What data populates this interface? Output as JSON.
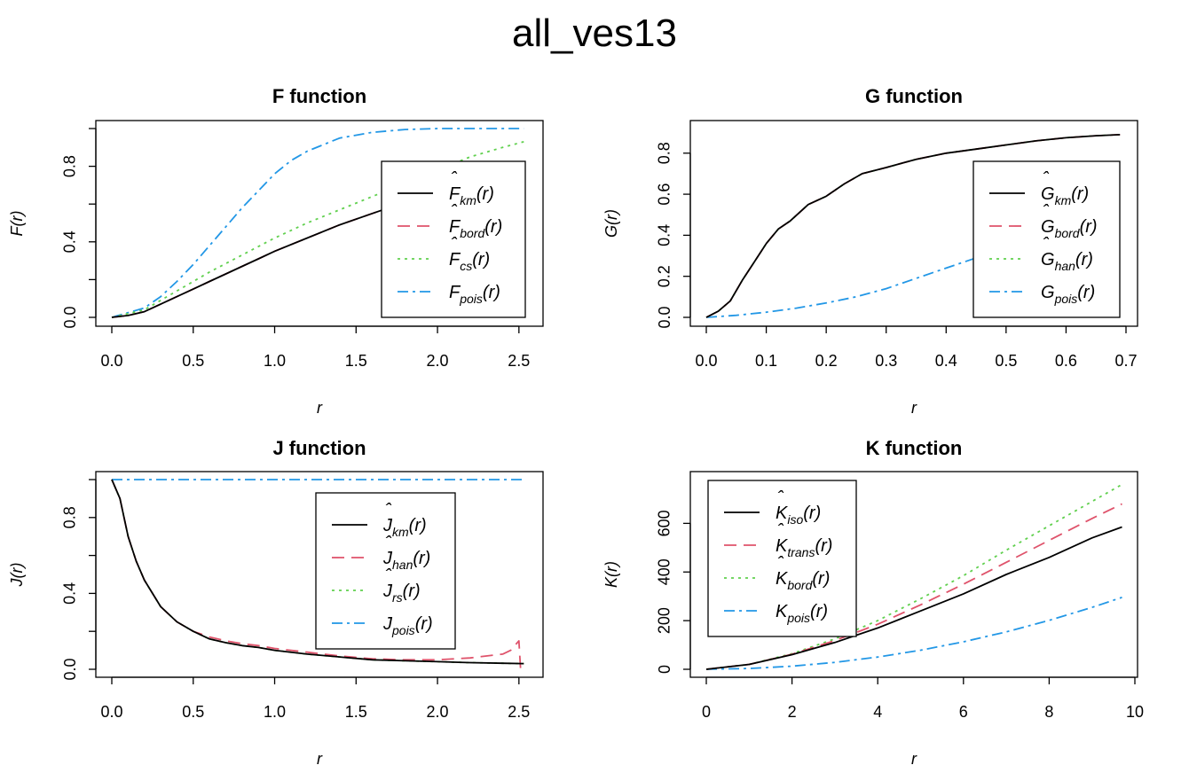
{
  "figure_title": "all_ves13",
  "colors": {
    "black": "#000000",
    "red": "#DF536B",
    "green": "#61D04F",
    "blue": "#2297E6"
  },
  "chart_data": [
    {
      "type": "line",
      "title": "F function",
      "xlabel": "r",
      "ylabel": "F(r)",
      "xlim": [
        0,
        2.55
      ],
      "ylim": [
        0,
        1.0
      ],
      "xticks": [
        0.0,
        0.5,
        1.0,
        1.5,
        2.0,
        2.5
      ],
      "xtick_labels": [
        "0.0",
        "0.5",
        "1.0",
        "1.5",
        "2.0",
        "2.5"
      ],
      "yticks": [
        0.0,
        0.2,
        0.4,
        0.6,
        0.8,
        1.0
      ],
      "yticks_labeled": [
        0.0,
        0.4,
        0.8
      ],
      "ytick_labels": [
        "0.0",
        "0.4",
        "0.8"
      ],
      "legend_position": "right",
      "series": [
        {
          "name": "F_km(r)",
          "label_main": "F",
          "label_sub": "km",
          "hat": true,
          "color": "#000000",
          "dash": "",
          "x": [
            0,
            0.1,
            0.2,
            0.3,
            0.4,
            0.5,
            0.6,
            0.7,
            0.8,
            0.9,
            1.0,
            1.2,
            1.4,
            1.6,
            1.8,
            2.0,
            2.2,
            2.4,
            2.53
          ],
          "y": [
            0,
            0.01,
            0.03,
            0.07,
            0.11,
            0.15,
            0.19,
            0.23,
            0.27,
            0.31,
            0.35,
            0.42,
            0.49,
            0.55,
            0.61,
            0.67,
            0.72,
            0.77,
            0.8
          ]
        },
        {
          "name": "F_bord(r)",
          "label_main": "F",
          "label_sub": "bord",
          "hat": true,
          "color": "#DF536B",
          "dash": "14,8",
          "x": [
            0,
            0.1,
            0.2,
            0.3,
            0.4,
            0.5,
            0.6,
            0.7,
            0.8,
            0.9,
            1.0,
            1.2,
            1.4,
            1.6,
            1.8,
            2.0,
            2.2,
            2.4,
            2.53
          ],
          "y": [
            0,
            0.01,
            0.03,
            0.07,
            0.11,
            0.15,
            0.19,
            0.23,
            0.27,
            0.31,
            0.35,
            0.42,
            0.49,
            0.55,
            0.61,
            0.67,
            0.72,
            0.77,
            0.8
          ]
        },
        {
          "name": "F_cs(r)",
          "label_main": "F",
          "label_sub": "cs",
          "hat": true,
          "color": "#61D04F",
          "dash": "3,5",
          "x": [
            0,
            0.2,
            0.4,
            0.6,
            0.8,
            1.0,
            1.2,
            1.4,
            1.6,
            1.8,
            2.0,
            2.2,
            2.4,
            2.53
          ],
          "y": [
            0,
            0.04,
            0.14,
            0.24,
            0.33,
            0.42,
            0.5,
            0.57,
            0.64,
            0.71,
            0.78,
            0.85,
            0.9,
            0.93
          ]
        },
        {
          "name": "F_pois(r)",
          "label_main": "F",
          "label_sub": "pois",
          "hat": false,
          "color": "#2297E6",
          "dash": "12,5,3,5",
          "x": [
            0,
            0.2,
            0.3,
            0.4,
            0.5,
            0.6,
            0.7,
            0.8,
            0.9,
            1.0,
            1.1,
            1.2,
            1.4,
            1.6,
            1.8,
            2.0,
            2.53
          ],
          "y": [
            0,
            0.05,
            0.11,
            0.19,
            0.28,
            0.38,
            0.48,
            0.58,
            0.67,
            0.76,
            0.83,
            0.88,
            0.95,
            0.98,
            0.995,
            1.0,
            1.0
          ]
        }
      ]
    },
    {
      "type": "line",
      "title": "G function",
      "xlabel": "r",
      "ylabel": "G(r)",
      "xlim": [
        0,
        0.7
      ],
      "ylim": [
        0,
        0.92
      ],
      "xticks": [
        0.0,
        0.1,
        0.2,
        0.3,
        0.4,
        0.5,
        0.6,
        0.7
      ],
      "xtick_labels": [
        "0.0",
        "0.1",
        "0.2",
        "0.3",
        "0.4",
        "0.5",
        "0.6",
        "0.7"
      ],
      "yticks": [
        0.0,
        0.2,
        0.4,
        0.6,
        0.8
      ],
      "yticks_labeled": [
        0.0,
        0.2,
        0.4,
        0.6,
        0.8
      ],
      "ytick_labels": [
        "0.0",
        "0.2",
        "0.4",
        "0.6",
        "0.8"
      ],
      "legend_position": "right",
      "series": [
        {
          "name": "G_km(r)",
          "label_main": "G",
          "label_sub": "km",
          "hat": true,
          "color": "#000000",
          "dash": "",
          "x": [
            0,
            0.02,
            0.04,
            0.06,
            0.08,
            0.1,
            0.12,
            0.14,
            0.17,
            0.2,
            0.23,
            0.26,
            0.3,
            0.35,
            0.4,
            0.45,
            0.5,
            0.55,
            0.6,
            0.65,
            0.69
          ],
          "y": [
            0,
            0.03,
            0.08,
            0.18,
            0.27,
            0.36,
            0.43,
            0.47,
            0.55,
            0.59,
            0.65,
            0.7,
            0.73,
            0.77,
            0.8,
            0.82,
            0.84,
            0.86,
            0.875,
            0.885,
            0.89
          ]
        },
        {
          "name": "G_bord(r)",
          "label_main": "G",
          "label_sub": "bord",
          "hat": true,
          "color": "#DF536B",
          "dash": "14,8",
          "x": [
            0,
            0.02,
            0.04,
            0.06,
            0.08,
            0.1,
            0.12,
            0.14,
            0.17,
            0.2,
            0.23,
            0.26,
            0.3,
            0.35,
            0.4,
            0.45,
            0.5,
            0.55,
            0.6,
            0.65,
            0.69
          ],
          "y": [
            0,
            0.03,
            0.08,
            0.18,
            0.27,
            0.36,
            0.43,
            0.47,
            0.55,
            0.59,
            0.65,
            0.7,
            0.73,
            0.77,
            0.8,
            0.82,
            0.84,
            0.86,
            0.875,
            0.885,
            0.89
          ]
        },
        {
          "name": "G_han(r)",
          "label_main": "G",
          "label_sub": "han",
          "hat": true,
          "color": "#61D04F",
          "dash": "3,5",
          "x": [
            0,
            0.02,
            0.04,
            0.06,
            0.08,
            0.1,
            0.12,
            0.14,
            0.17,
            0.2,
            0.23,
            0.26,
            0.3,
            0.35,
            0.4,
            0.45,
            0.5,
            0.55,
            0.6,
            0.65,
            0.69
          ],
          "y": [
            0,
            0.03,
            0.08,
            0.18,
            0.27,
            0.36,
            0.43,
            0.47,
            0.55,
            0.59,
            0.65,
            0.7,
            0.73,
            0.77,
            0.8,
            0.82,
            0.84,
            0.86,
            0.875,
            0.885,
            0.89
          ]
        },
        {
          "name": "G_pois(r)",
          "label_main": "G",
          "label_sub": "pois",
          "hat": false,
          "color": "#2297E6",
          "dash": "12,5,3,5",
          "x": [
            0,
            0.05,
            0.1,
            0.15,
            0.2,
            0.25,
            0.3,
            0.35,
            0.4,
            0.45,
            0.5,
            0.55,
            0.6,
            0.65,
            0.69
          ],
          "y": [
            0,
            0.01,
            0.025,
            0.045,
            0.07,
            0.1,
            0.14,
            0.19,
            0.24,
            0.29,
            0.35,
            0.41,
            0.47,
            0.53,
            0.58
          ]
        }
      ]
    },
    {
      "type": "line",
      "title": "J function",
      "xlabel": "r",
      "ylabel": "J(r)",
      "xlim": [
        0,
        2.55
      ],
      "ylim": [
        0,
        1.0
      ],
      "xticks": [
        0.0,
        0.5,
        1.0,
        1.5,
        2.0,
        2.5
      ],
      "xtick_labels": [
        "0.0",
        "0.5",
        "1.0",
        "1.5",
        "2.0",
        "2.5"
      ],
      "yticks": [
        0.0,
        0.2,
        0.4,
        0.6,
        0.8,
        1.0
      ],
      "yticks_labeled": [
        0.0,
        0.4,
        0.8
      ],
      "ytick_labels": [
        "0.0",
        "0.4",
        "0.8"
      ],
      "legend_position": "top-center",
      "series": [
        {
          "name": "J_km(r)",
          "label_main": "J",
          "label_sub": "km",
          "hat": true,
          "color": "#000000",
          "dash": "",
          "x": [
            0,
            0.05,
            0.1,
            0.15,
            0.2,
            0.3,
            0.4,
            0.5,
            0.6,
            0.7,
            0.8,
            0.9,
            1.0,
            1.2,
            1.4,
            1.6,
            1.8,
            2.0,
            2.2,
            2.4,
            2.53
          ],
          "y": [
            1.0,
            0.9,
            0.7,
            0.57,
            0.47,
            0.33,
            0.25,
            0.2,
            0.16,
            0.14,
            0.125,
            0.115,
            0.1,
            0.08,
            0.065,
            0.05,
            0.045,
            0.04,
            0.035,
            0.032,
            0.03
          ]
        },
        {
          "name": "J_han(r)",
          "label_main": "J",
          "label_sub": "han",
          "hat": true,
          "color": "#DF536B",
          "dash": "14,8",
          "x": [
            0,
            0.05,
            0.1,
            0.15,
            0.2,
            0.3,
            0.4,
            0.5,
            0.6,
            0.7,
            0.8,
            0.9,
            1.0,
            1.2,
            1.4,
            1.6,
            1.8,
            2.0,
            2.2,
            2.3,
            2.4,
            2.45,
            2.5,
            2.51
          ],
          "y": [
            1.0,
            0.9,
            0.7,
            0.57,
            0.47,
            0.33,
            0.25,
            0.2,
            0.17,
            0.15,
            0.135,
            0.125,
            0.11,
            0.09,
            0.07,
            0.055,
            0.05,
            0.05,
            0.06,
            0.07,
            0.08,
            0.1,
            0.15,
            0.0
          ]
        },
        {
          "name": "J_rs(r)",
          "label_main": "J",
          "label_sub": "rs",
          "hat": true,
          "color": "#61D04F",
          "dash": "3,5",
          "x": [
            0,
            0.05,
            0.1,
            0.15,
            0.2,
            0.3,
            0.4,
            0.5,
            0.6,
            0.7,
            0.8,
            0.9,
            1.0,
            1.2,
            1.4,
            1.6,
            1.8,
            2.0,
            2.2,
            2.4,
            2.53
          ],
          "y": [
            1.0,
            0.9,
            0.7,
            0.57,
            0.47,
            0.33,
            0.25,
            0.2,
            0.16,
            0.14,
            0.125,
            0.115,
            0.1,
            0.08,
            0.065,
            0.05,
            0.045,
            0.04,
            0.035,
            0.032,
            0.03
          ]
        },
        {
          "name": "J_pois(r)",
          "label_main": "J",
          "label_sub": "pois",
          "hat": false,
          "color": "#2297E6",
          "dash": "12,5,3,5",
          "x": [
            0,
            2.53
          ],
          "y": [
            1.0,
            1.0
          ]
        }
      ]
    },
    {
      "type": "line",
      "title": "K function",
      "xlabel": "r",
      "ylabel": "K(r)",
      "xlim": [
        0,
        10
      ],
      "ylim": [
        0,
        780
      ],
      "xticks": [
        0,
        2,
        4,
        6,
        8,
        10
      ],
      "xtick_labels": [
        "0",
        "2",
        "4",
        "6",
        "8",
        "10"
      ],
      "yticks": [
        0,
        200,
        400,
        600
      ],
      "yticks_labeled": [
        0,
        200,
        400,
        600
      ],
      "ytick_labels": [
        "0",
        "200",
        "400",
        "600"
      ],
      "legend_position": "top-left",
      "series": [
        {
          "name": "K_iso(r)",
          "label_main": "K",
          "label_sub": "iso",
          "hat": true,
          "color": "#000000",
          "dash": "",
          "x": [
            0,
            1,
            2,
            3,
            4,
            5,
            6,
            7,
            8,
            9,
            9.7
          ],
          "y": [
            0,
            20,
            60,
            110,
            170,
            240,
            310,
            390,
            460,
            540,
            585
          ]
        },
        {
          "name": "K_trans(r)",
          "label_main": "K",
          "label_sub": "trans",
          "hat": true,
          "color": "#DF536B",
          "dash": "14,8",
          "x": [
            0,
            1,
            2,
            3,
            4,
            5,
            6,
            7,
            8,
            9,
            9.7
          ],
          "y": [
            0,
            20,
            62,
            118,
            185,
            265,
            350,
            440,
            530,
            620,
            680
          ]
        },
        {
          "name": "K_bord(r)",
          "label_main": "K",
          "label_sub": "bord",
          "hat": true,
          "color": "#61D04F",
          "dash": "3,5",
          "x": [
            0,
            1,
            2,
            3,
            4,
            5,
            6,
            7,
            8,
            9,
            9.7
          ],
          "y": [
            0,
            20,
            64,
            125,
            200,
            290,
            385,
            490,
            590,
            690,
            760
          ]
        },
        {
          "name": "K_pois(r)",
          "label_main": "K",
          "label_sub": "pois",
          "hat": false,
          "color": "#2297E6",
          "dash": "12,5,3,5",
          "x": [
            0,
            1,
            2,
            3,
            4,
            5,
            6,
            7,
            8,
            9,
            9.7
          ],
          "y": [
            0,
            3.1,
            12.6,
            28.3,
            50.3,
            78.5,
            113.1,
            153.9,
            201.1,
            254.5,
            295.6
          ]
        }
      ]
    }
  ]
}
